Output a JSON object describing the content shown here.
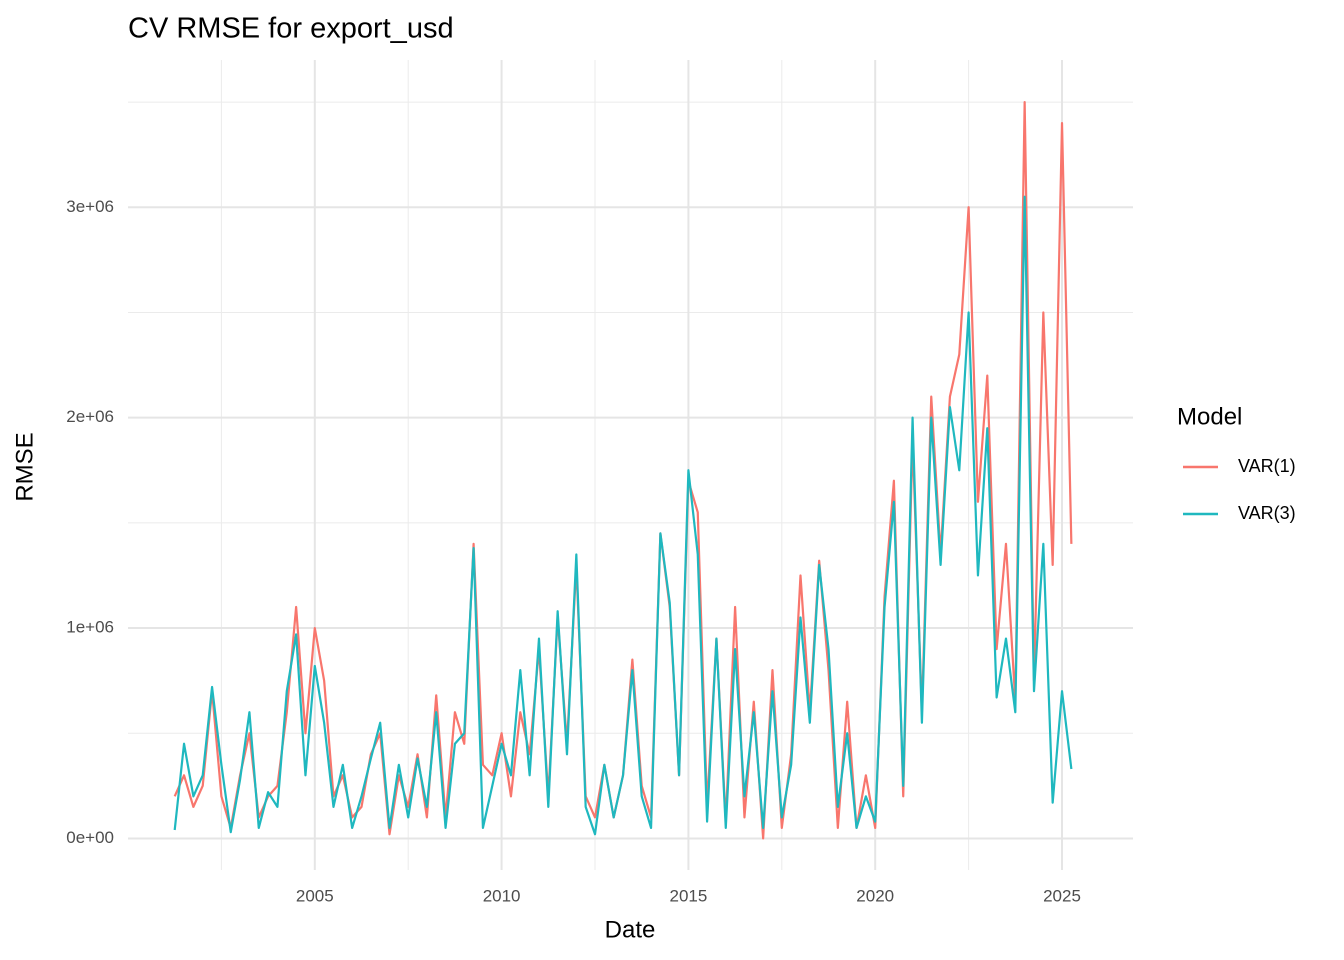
{
  "chart_data": {
    "type": "line",
    "title": "CV RMSE for export_usd",
    "x_label": "Date",
    "y_label": "RMSE",
    "x": [
      2001.25,
      2001.5,
      2001.75,
      2002,
      2002.25,
      2002.5,
      2002.75,
      2003,
      2003.25,
      2003.5,
      2003.75,
      2004,
      2004.25,
      2004.5,
      2004.75,
      2005,
      2005.25,
      2005.5,
      2005.75,
      2006,
      2006.25,
      2006.5,
      2006.75,
      2007,
      2007.25,
      2007.5,
      2007.75,
      2008,
      2008.25,
      2008.5,
      2008.75,
      2009,
      2009.25,
      2009.5,
      2009.75,
      2010,
      2010.25,
      2010.5,
      2010.75,
      2011,
      2011.25,
      2011.5,
      2011.75,
      2012,
      2012.25,
      2012.5,
      2012.75,
      2013,
      2013.25,
      2013.5,
      2013.75,
      2014,
      2014.25,
      2014.5,
      2014.75,
      2015,
      2015.25,
      2015.5,
      2015.75,
      2016,
      2016.25,
      2016.5,
      2016.75,
      2017,
      2017.25,
      2017.5,
      2017.75,
      2018,
      2018.25,
      2018.5,
      2018.75,
      2019,
      2019.25,
      2019.5,
      2019.75,
      2020,
      2020.25,
      2020.5,
      2020.75,
      2021,
      2021.25,
      2021.5,
      2021.75,
      2022,
      2022.25,
      2022.5,
      2022.75,
      2023,
      2023.25,
      2023.5,
      2023.75,
      2024,
      2024.25,
      2024.5,
      2024.75,
      2025,
      2025.25
    ],
    "series": [
      {
        "name": "VAR(1)",
        "color": "#F8766D",
        "values": [
          200000,
          300000,
          150000,
          250000,
          700000,
          200000,
          50000,
          300000,
          500000,
          100000,
          200000,
          250000,
          600000,
          1100000,
          500000,
          1000000,
          750000,
          200000,
          300000,
          100000,
          150000,
          400000,
          500000,
          20000,
          300000,
          150000,
          400000,
          100000,
          680000,
          100000,
          600000,
          450000,
          1400000,
          350000,
          300000,
          500000,
          200000,
          600000,
          400000,
          900000,
          200000,
          1050000,
          450000,
          1300000,
          200000,
          100000,
          350000,
          100000,
          300000,
          850000,
          250000,
          100000,
          1450000,
          1100000,
          300000,
          1700000,
          1550000,
          150000,
          950000,
          80000,
          1100000,
          100000,
          650000,
          0,
          800000,
          50000,
          400000,
          1250000,
          600000,
          1320000,
          800000,
          50000,
          650000,
          50000,
          300000,
          50000,
          1150000,
          1700000,
          200000,
          1900000,
          600000,
          2100000,
          1350000,
          2100000,
          2300000,
          3000000,
          1600000,
          2200000,
          900000,
          1400000,
          650000,
          3500000,
          750000,
          2500000,
          1300000,
          3400000,
          1400000
        ]
      },
      {
        "name": "VAR(3)",
        "color": "#1FB8BF",
        "values": [
          40000,
          450000,
          200000,
          300000,
          720000,
          350000,
          30000,
          280000,
          600000,
          50000,
          220000,
          150000,
          700000,
          970000,
          300000,
          820000,
          550000,
          150000,
          350000,
          50000,
          200000,
          380000,
          550000,
          50000,
          350000,
          100000,
          380000,
          150000,
          600000,
          50000,
          450000,
          500000,
          1380000,
          50000,
          250000,
          450000,
          300000,
          800000,
          300000,
          950000,
          150000,
          1080000,
          400000,
          1350000,
          150000,
          20000,
          350000,
          100000,
          300000,
          800000,
          200000,
          50000,
          1450000,
          1120000,
          300000,
          1750000,
          1350000,
          80000,
          950000,
          50000,
          900000,
          200000,
          600000,
          50000,
          700000,
          100000,
          350000,
          1050000,
          550000,
          1300000,
          900000,
          150000,
          500000,
          50000,
          200000,
          80000,
          1100000,
          1600000,
          250000,
          2000000,
          550000,
          2000000,
          1300000,
          2050000,
          1750000,
          2500000,
          1250000,
          1950000,
          670000,
          950000,
          600000,
          3050000,
          700000,
          1400000,
          170000,
          700000,
          330000
        ]
      }
    ],
    "xlim": [
      2000.0,
      2026.9
    ],
    "xticks": [
      2005,
      2010,
      2015,
      2020,
      2025
    ],
    "ylim": [
      -150000,
      3700000
    ],
    "yticks": [
      {
        "value": 0,
        "label": "0e+00"
      },
      {
        "value": 1000000,
        "label": "1e+06"
      },
      {
        "value": 2000000,
        "label": "2e+06"
      },
      {
        "value": 3000000,
        "label": "3e+06"
      }
    ],
    "grid": true,
    "legend_title": "Model",
    "legend_position": "right"
  }
}
